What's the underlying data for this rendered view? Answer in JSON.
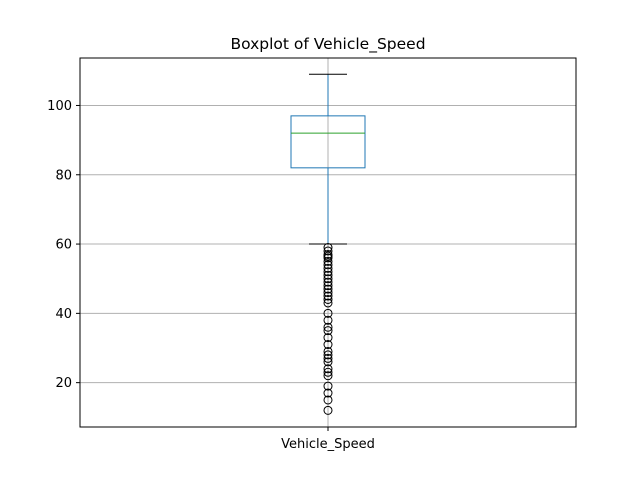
{
  "chart_data": {
    "type": "boxplot",
    "title": "Boxplot of Vehicle_Speed",
    "xlabel": "",
    "ylabel": "",
    "categories": [
      "Vehicle_Speed"
    ],
    "y_ticks": [
      20,
      40,
      60,
      80,
      100
    ],
    "ylim": [
      7.2,
      113.7
    ],
    "grid": true,
    "colors": {
      "box": "#1f77b4",
      "median": "#2ca02c",
      "whisker": "#1f77b4",
      "cap": "#000000",
      "flier": "#000000",
      "grid": "#b0b0b0"
    },
    "series": [
      {
        "category": "Vehicle_Speed",
        "whisker_low": 60,
        "q1": 82,
        "median": 92,
        "q3": 97,
        "whisker_high": 109,
        "outliers": [
          59,
          58,
          57,
          56.5,
          56,
          55,
          54,
          53,
          52,
          51,
          50,
          49,
          48,
          47,
          46,
          45,
          44,
          43,
          40,
          38,
          36,
          35,
          33,
          31,
          29,
          28,
          27,
          26,
          24,
          23,
          22,
          19,
          17,
          15,
          12
        ]
      }
    ]
  }
}
